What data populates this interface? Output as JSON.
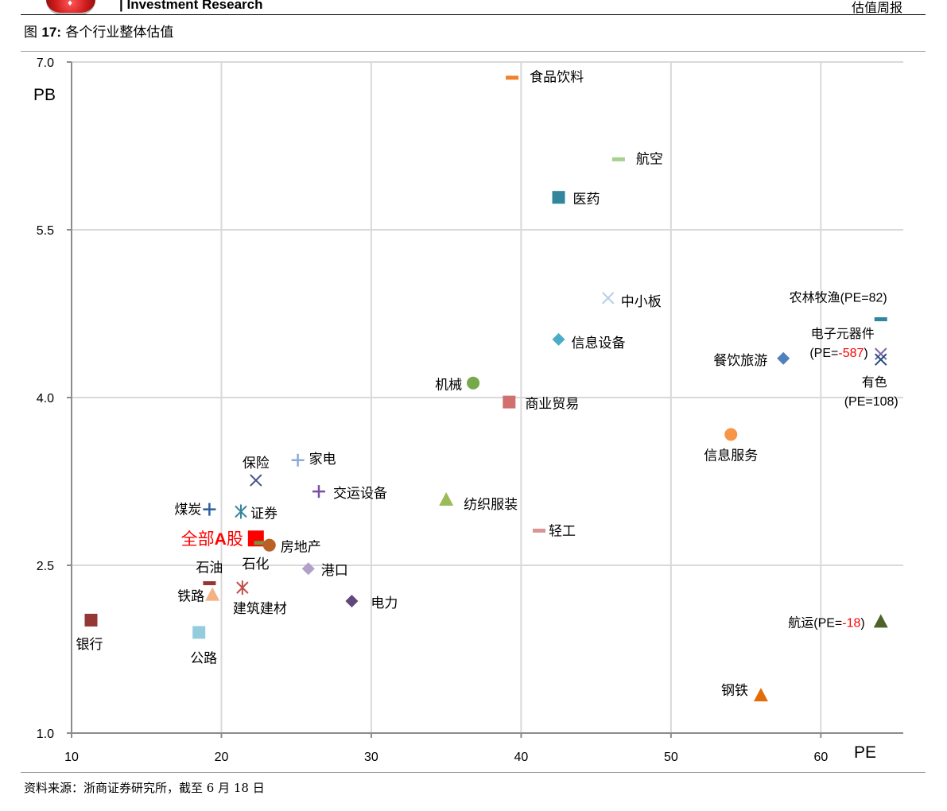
{
  "header": {
    "left_text": "| Investment Research",
    "right_text": "估值周报"
  },
  "figure": {
    "prefix": "图",
    "number": "17:",
    "caption": "各个行业整体估值"
  },
  "source_text": "资料来源：浙商证券研究所，截至 6 月 18 日",
  "chart_data": {
    "type": "scatter",
    "title": "",
    "xlabel": "PE",
    "ylabel": "PB",
    "xlim": [
      10,
      65.5
    ],
    "ylim": [
      1.0,
      7.0
    ],
    "xticks": [
      10,
      20,
      30,
      40,
      50,
      60
    ],
    "yticks": [
      1.0,
      2.5,
      4.0,
      5.5,
      7.0
    ],
    "ytick_labels": [
      "1.0",
      "2.5",
      "4.0",
      "5.5",
      "7.0"
    ],
    "grid": true,
    "points": [
      {
        "name": "食品饮料",
        "x": 39.4,
        "y": 6.86,
        "marker": "dash",
        "color": "#f0802a"
      },
      {
        "name": "航空",
        "x": 46.5,
        "y": 6.13,
        "marker": "dash",
        "color": "#a9d18e"
      },
      {
        "name": "医药",
        "x": 42.5,
        "y": 5.79,
        "marker": "square",
        "color": "#31859c"
      },
      {
        "name": "中小板",
        "x": 45.8,
        "y": 4.89,
        "marker": "x",
        "color": "#b7cde6"
      },
      {
        "name": "信息设备",
        "x": 42.5,
        "y": 4.52,
        "marker": "diamond",
        "color": "#4bacc6"
      },
      {
        "name": "机械",
        "x": 36.8,
        "y": 4.13,
        "marker": "circle",
        "color": "#77a84a"
      },
      {
        "name": "商业贸易",
        "x": 39.2,
        "y": 3.96,
        "marker": "square",
        "color": "#d07070"
      },
      {
        "name": "信息服务",
        "x": 54.0,
        "y": 3.67,
        "marker": "circle",
        "color": "#f79646"
      },
      {
        "name": "家电",
        "x": 25.1,
        "y": 3.44,
        "marker": "plus",
        "color": "#8eaadb"
      },
      {
        "name": "保险",
        "x": 22.3,
        "y": 3.26,
        "marker": "x",
        "color": "#4a4f8f"
      },
      {
        "name": "交运设备",
        "x": 26.5,
        "y": 3.16,
        "marker": "plus",
        "color": "#7a4fa0"
      },
      {
        "name": "纺织服装",
        "x": 35.0,
        "y": 3.09,
        "marker": "triangle",
        "color": "#9bbb59"
      },
      {
        "name": "煤炭",
        "x": 19.2,
        "y": 3.0,
        "marker": "plus",
        "color": "#2e5f9e"
      },
      {
        "name": "证券",
        "x": 21.3,
        "y": 2.98,
        "marker": "asterisk",
        "color": "#31859c"
      },
      {
        "name": "轻工",
        "x": 41.2,
        "y": 2.81,
        "marker": "dash",
        "color": "#d99694"
      },
      {
        "name": "全部A股",
        "x": 22.3,
        "y": 2.74,
        "marker": "square",
        "color": "#ff0000"
      },
      {
        "name": "石化",
        "x": 22.6,
        "y": 2.7,
        "marker": "dash",
        "color": "#77933c"
      },
      {
        "name": "房地产",
        "x": 23.2,
        "y": 2.68,
        "marker": "circle",
        "color": "#b96026"
      },
      {
        "name": "港口",
        "x": 25.8,
        "y": 2.47,
        "marker": "diamond",
        "color": "#b1a0c7"
      },
      {
        "name": "石油",
        "x": 19.2,
        "y": 2.34,
        "marker": "dash",
        "color": "#953735"
      },
      {
        "name": "建筑建材",
        "x": 21.4,
        "y": 2.3,
        "marker": "asterisk",
        "color": "#c0504d"
      },
      {
        "name": "铁路",
        "x": 19.4,
        "y": 2.24,
        "marker": "triangle",
        "color": "#f4b183"
      },
      {
        "name": "电力",
        "x": 28.7,
        "y": 2.18,
        "marker": "diamond",
        "color": "#60497a"
      },
      {
        "name": "银行",
        "x": 11.3,
        "y": 2.01,
        "marker": "square",
        "color": "#953735"
      },
      {
        "name": "公路",
        "x": 18.5,
        "y": 1.9,
        "marker": "square",
        "color": "#93cddd"
      },
      {
        "name": "钢铁",
        "x": 56.0,
        "y": 1.34,
        "marker": "triangle",
        "color": "#e36c0a"
      },
      {
        "name": "餐饮旅游",
        "x": 57.5,
        "y": 4.35,
        "marker": "diamond",
        "color": "#4f81bd"
      },
      {
        "name": "农林牧渔(PE=82)",
        "x": 64.0,
        "y": 4.7,
        "marker": "dash",
        "color": "#31859c"
      },
      {
        "name": "电子元器件(PE=-587)",
        "x": 64.0,
        "y": 4.39,
        "marker": "x",
        "color": "#8064a2"
      },
      {
        "name": "有色(PE=108)",
        "x": 64.0,
        "y": 4.34,
        "marker": "x",
        "color": "#1f497d"
      },
      {
        "name": "航运(PE=-18)",
        "x": 64.0,
        "y": 2.0,
        "marker": "triangle",
        "color": "#4f6228"
      }
    ],
    "highlight_color": "#ff0000"
  }
}
